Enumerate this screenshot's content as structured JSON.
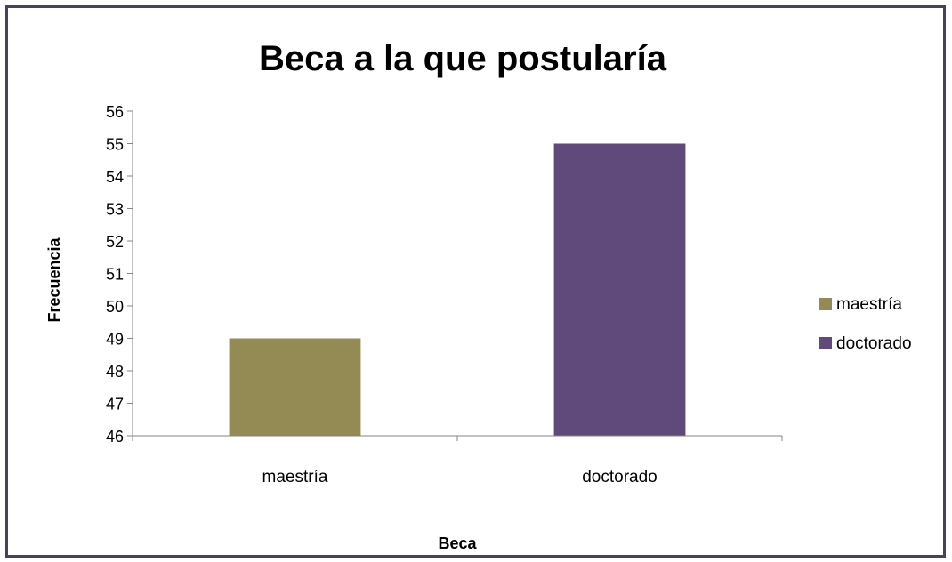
{
  "chart_data": {
    "type": "bar",
    "title": "Beca a la que postularía",
    "xlabel": "Beca",
    "ylabel": "Frecuencia",
    "categories": [
      "maestría",
      "doctorado"
    ],
    "values": [
      49,
      55
    ],
    "colors": [
      "#948a54",
      "#604a7b"
    ],
    "ylim": [
      46,
      56
    ],
    "yticks": [
      46,
      47,
      48,
      49,
      50,
      51,
      52,
      53,
      54,
      55,
      56
    ],
    "grid": false,
    "legend": {
      "position": "right",
      "entries": [
        "maestría",
        "doctorado"
      ]
    },
    "border_color": "#4b3f5e"
  }
}
